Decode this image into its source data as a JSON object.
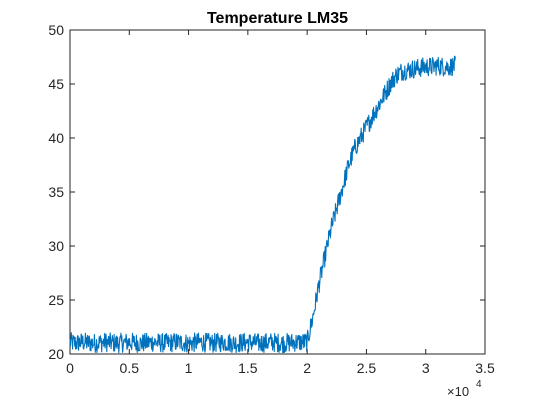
{
  "chart_data": {
    "type": "line",
    "title": "Temperature LM35",
    "xlabel": "",
    "ylabel": "",
    "xlim": [
      0,
      3.5
    ],
    "ylim": [
      20,
      50
    ],
    "x_ticks": [
      "0",
      "0.5",
      "1",
      "1.5",
      "2",
      "2.5",
      "3",
      "3.5"
    ],
    "y_ticks": [
      "20",
      "25",
      "30",
      "35",
      "40",
      "45",
      "50"
    ],
    "x_exponent_base": "×10",
    "x_exponent_power": "4",
    "grid": false,
    "line_color": "#0072BD",
    "series": [
      {
        "x": [
          0,
          0.05,
          0.1,
          0.2,
          0.3,
          0.4,
          0.5,
          0.6,
          0.7,
          0.8,
          0.9,
          1.0,
          1.1,
          1.2,
          1.3,
          1.4,
          1.5,
          1.6,
          1.7,
          1.8,
          1.9,
          2.0,
          2.05,
          2.1,
          2.15,
          2.2,
          2.25,
          2.3,
          2.35,
          2.4,
          2.45,
          2.5,
          2.55,
          2.6,
          2.65,
          2.7,
          2.75,
          2.8,
          2.85,
          2.9,
          2.95,
          3.0,
          3.05,
          3.1,
          3.15,
          3.2,
          3.25
        ],
        "values": [
          21.1,
          21.0,
          21.1,
          21.0,
          21.1,
          21.0,
          21.1,
          21.0,
          21.1,
          21.0,
          21.1,
          21.0,
          21.1,
          21.0,
          21.1,
          21.0,
          21.1,
          21.0,
          21.1,
          21.0,
          21.1,
          21.1,
          23.5,
          26.5,
          29.0,
          31.5,
          33.5,
          35.5,
          37.5,
          39.0,
          40.0,
          41.0,
          42.0,
          43.0,
          44.0,
          45.0,
          45.8,
          46.2,
          46.3,
          46.4,
          46.5,
          46.6,
          46.6,
          46.7,
          46.6,
          46.6,
          46.7
        ]
      }
    ],
    "noise_amplitude": 0.9
  }
}
